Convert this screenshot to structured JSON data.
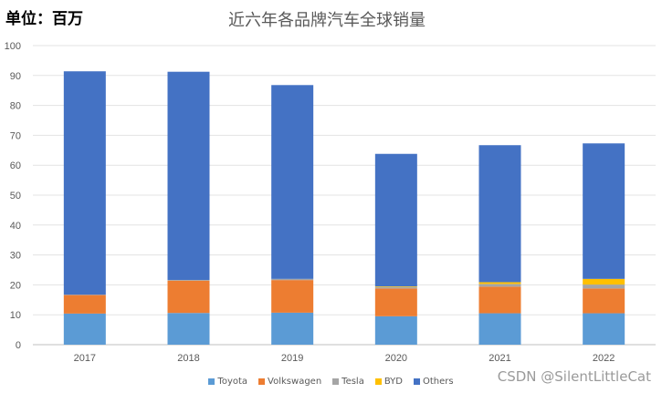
{
  "unit_label": "单位：百万",
  "watermark": "CSDN @SilentLittleCat",
  "chart_data": {
    "type": "bar",
    "stacked": true,
    "title": "近六年各品牌汽车全球销量",
    "categories": [
      "2017",
      "2018",
      "2019",
      "2020",
      "2021",
      "2022"
    ],
    "ylim": [
      0,
      100
    ],
    "yticks": [
      0,
      10,
      20,
      30,
      40,
      50,
      60,
      70,
      80,
      90,
      100
    ],
    "grid": true,
    "legend_position": "bottom",
    "series": [
      {
        "name": "Toyota",
        "color": "#5B9BD5",
        "values": [
          10.4,
          10.6,
          10.7,
          9.5,
          10.5,
          10.5
        ]
      },
      {
        "name": "Volkswagen",
        "color": "#ED7D31",
        "values": [
          6.2,
          10.8,
          10.9,
          9.3,
          8.9,
          8.3
        ]
      },
      {
        "name": "Tesla",
        "color": "#A5A5A5",
        "values": [
          0.1,
          0.25,
          0.4,
          0.5,
          0.9,
          1.3
        ]
      },
      {
        "name": "BYD",
        "color": "#FFC000",
        "values": [
          0.0,
          0.0,
          0.0,
          0.2,
          0.6,
          1.9
        ]
      },
      {
        "name": "Others",
        "color": "#4472C4",
        "values": [
          74.7,
          69.6,
          64.8,
          44.3,
          45.8,
          45.3
        ]
      }
    ]
  }
}
